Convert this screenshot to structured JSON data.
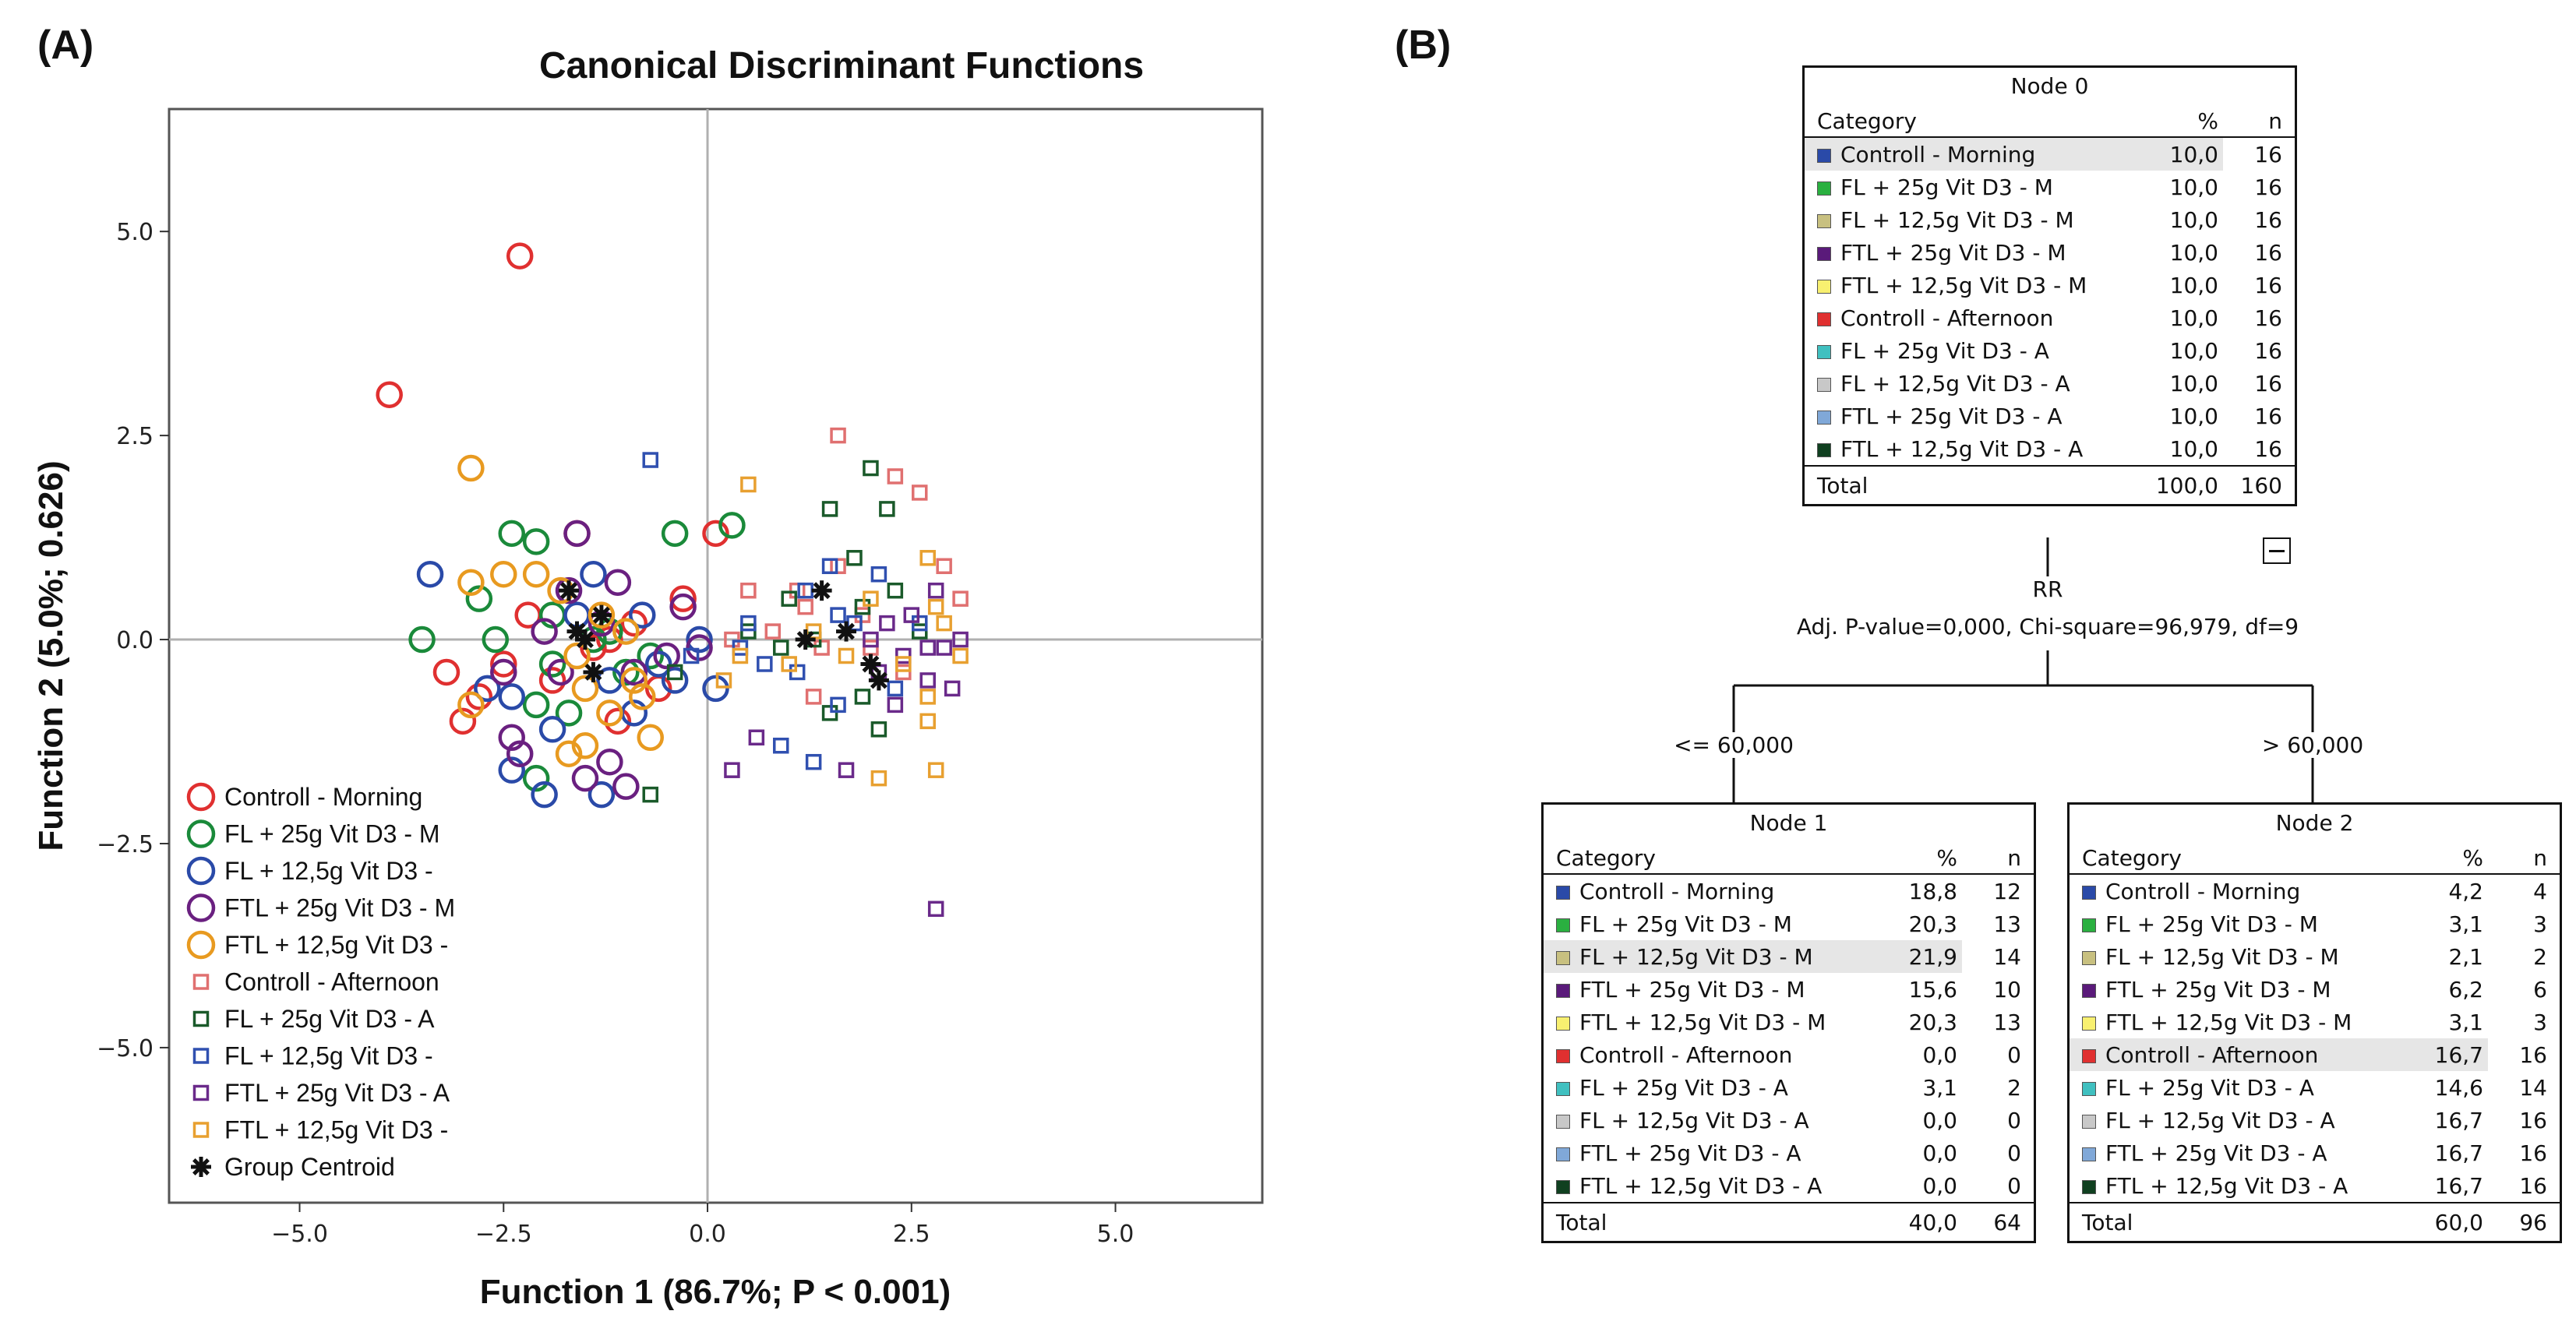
{
  "panel_a_label": "(A)",
  "panel_b_label": "(B)",
  "chart_data": {
    "type": "scatter",
    "title": "Canonical Discriminant Functions",
    "xlabel": "Function 1 (86.7%; P < 0.001)",
    "ylabel": "Function 2 (5.0%; 0.626)",
    "xlim": [
      -6.6,
      6.8
    ],
    "ylim": [
      -6.9,
      6.5
    ],
    "xticks": [
      -5,
      -2.5,
      0,
      2.5,
      5
    ],
    "xtick_labels": [
      "-5.0",
      "-2.5",
      "0.0",
      "2.5",
      "5.0"
    ],
    "yticks": [
      -5,
      -2.5,
      0,
      2.5,
      5
    ],
    "ytick_labels": [
      "-5.0",
      "-2.5",
      "0.0",
      "2.5",
      "5.0"
    ],
    "reference_lines": {
      "x": 0,
      "y": 0
    },
    "legend_position": "bottom-left",
    "series": [
      {
        "name": "Controll - Morning",
        "marker": "circle",
        "color": "#e03030",
        "points": [
          [
            -2.3,
            4.7
          ],
          [
            -3.9,
            3.0
          ],
          [
            -3.2,
            -0.4
          ],
          [
            -3.0,
            -1.0
          ],
          [
            -2.2,
            0.3
          ],
          [
            -1.6,
            1.3
          ],
          [
            -1.2,
            0.0
          ],
          [
            -0.3,
            0.5
          ],
          [
            0.1,
            1.3
          ],
          [
            -2.8,
            -0.7
          ],
          [
            -1.9,
            -0.5
          ],
          [
            -1.4,
            -0.1
          ],
          [
            -2.5,
            -0.3
          ],
          [
            -0.9,
            0.2
          ],
          [
            -1.1,
            -1.0
          ],
          [
            -0.6,
            -0.6
          ]
        ]
      },
      {
        "name": "FL + 25g Vit D3 - M",
        "marker": "circle",
        "color": "#1a8a3a",
        "points": [
          [
            -2.4,
            1.3
          ],
          [
            -2.1,
            1.2
          ],
          [
            -0.4,
            1.3
          ],
          [
            0.3,
            1.4
          ],
          [
            -2.8,
            0.5
          ],
          [
            -1.9,
            0.3
          ],
          [
            -1.4,
            0.0
          ],
          [
            -3.5,
            0.0
          ],
          [
            -2.1,
            -0.8
          ],
          [
            -1.7,
            -0.9
          ],
          [
            -2.1,
            -1.7
          ],
          [
            -1.0,
            -0.4
          ],
          [
            -1.9,
            -0.3
          ],
          [
            -0.7,
            -0.2
          ],
          [
            -2.6,
            0.0
          ],
          [
            -1.2,
            0.1
          ]
        ]
      },
      {
        "name": "FL + 12,5g Vit D3 -",
        "marker": "circle",
        "color": "#2a4aa8",
        "points": [
          [
            -3.4,
            0.8
          ],
          [
            -2.4,
            -0.7
          ],
          [
            -2.0,
            -1.9
          ],
          [
            -1.3,
            -1.9
          ],
          [
            -0.8,
            0.3
          ],
          [
            -0.4,
            -0.5
          ],
          [
            -1.9,
            -1.1
          ],
          [
            -1.2,
            -0.5
          ],
          [
            -2.4,
            -1.6
          ],
          [
            -0.9,
            -0.9
          ],
          [
            -1.6,
            0.3
          ],
          [
            -0.1,
            0.0
          ],
          [
            -2.7,
            -0.6
          ],
          [
            -1.4,
            0.8
          ],
          [
            -0.6,
            -0.3
          ],
          [
            0.1,
            -0.6
          ]
        ]
      },
      {
        "name": "FTL + 25g Vit D3 - M",
        "marker": "circle",
        "color": "#6a2080",
        "points": [
          [
            -1.6,
            1.3
          ],
          [
            -1.5,
            -1.7
          ],
          [
            -1.2,
            -1.5
          ],
          [
            -2.4,
            -1.2
          ],
          [
            -2.5,
            -0.4
          ],
          [
            -1.1,
            0.7
          ],
          [
            -2.0,
            0.1
          ],
          [
            -0.9,
            -0.4
          ],
          [
            -0.3,
            0.4
          ],
          [
            -1.8,
            -0.4
          ],
          [
            -2.3,
            -1.4
          ],
          [
            -1.0,
            -1.8
          ],
          [
            -0.5,
            -0.2
          ],
          [
            -1.7,
            0.6
          ],
          [
            -1.3,
            0.2
          ],
          [
            -0.1,
            -0.1
          ]
        ]
      },
      {
        "name": "FTL + 12,5g Vit D3 -",
        "marker": "circle",
        "color": "#e89a20",
        "points": [
          [
            -2.9,
            2.1
          ],
          [
            -2.5,
            0.8
          ],
          [
            -2.1,
            0.8
          ],
          [
            -1.8,
            0.6
          ],
          [
            -1.5,
            -0.6
          ],
          [
            -1.2,
            -0.9
          ],
          [
            -0.7,
            -1.2
          ],
          [
            -1.7,
            -1.4
          ],
          [
            -2.9,
            0.7
          ],
          [
            -1.3,
            0.3
          ],
          [
            -0.9,
            -0.5
          ],
          [
            -1.5,
            -1.3
          ],
          [
            -0.8,
            -0.7
          ],
          [
            -2.9,
            -0.8
          ],
          [
            -1.6,
            -0.2
          ],
          [
            -1.0,
            0.1
          ]
        ]
      },
      {
        "name": "Controll - Afternoon",
        "marker": "square",
        "color": "#e07070",
        "points": [
          [
            1.6,
            2.5
          ],
          [
            2.3,
            2.0
          ],
          [
            2.6,
            1.8
          ],
          [
            1.2,
            0.4
          ],
          [
            0.5,
            0.6
          ],
          [
            1.6,
            0.9
          ],
          [
            1.9,
            0.3
          ],
          [
            2.9,
            0.9
          ],
          [
            1.4,
            -0.1
          ],
          [
            2.4,
            -0.4
          ],
          [
            3.1,
            0.5
          ],
          [
            0.8,
            0.1
          ],
          [
            1.3,
            -0.7
          ],
          [
            0.3,
            0.0
          ],
          [
            2.0,
            -0.1
          ],
          [
            1.1,
            0.6
          ]
        ]
      },
      {
        "name": "FL + 25g Vit D3 - A",
        "marker": "square",
        "color": "#1a5a2a",
        "points": [
          [
            2.0,
            2.1
          ],
          [
            1.8,
            1.0
          ],
          [
            1.9,
            0.4
          ],
          [
            1.3,
            0.0
          ],
          [
            0.9,
            -0.1
          ],
          [
            2.2,
            1.6
          ],
          [
            2.1,
            -1.1
          ],
          [
            1.5,
            -0.9
          ],
          [
            -0.4,
            -0.4
          ],
          [
            0.5,
            0.1
          ],
          [
            1.9,
            -0.7
          ],
          [
            2.6,
            0.1
          ],
          [
            -0.7,
            -1.9
          ],
          [
            1.0,
            0.5
          ],
          [
            2.3,
            0.6
          ],
          [
            1.5,
            1.6
          ]
        ]
      },
      {
        "name": "FL + 12,5g Vit D3 -",
        "marker": "square",
        "color": "#3050b0",
        "points": [
          [
            -0.7,
            2.2
          ],
          [
            0.5,
            0.2
          ],
          [
            1.5,
            0.9
          ],
          [
            0.9,
            -1.3
          ],
          [
            2.1,
            0.8
          ],
          [
            1.3,
            -1.5
          ],
          [
            1.6,
            -0.8
          ],
          [
            1.6,
            0.3
          ],
          [
            2.3,
            -0.6
          ],
          [
            0.7,
            -0.3
          ],
          [
            1.1,
            -0.4
          ],
          [
            1.8,
            0.2
          ],
          [
            -0.2,
            -0.2
          ],
          [
            1.2,
            0.6
          ],
          [
            0.4,
            -0.1
          ],
          [
            2.6,
            0.2
          ]
        ]
      },
      {
        "name": "FTL + 25g Vit D3 - A",
        "marker": "square",
        "color": "#6a2a8a",
        "points": [
          [
            2.8,
            -3.3
          ],
          [
            0.3,
            -1.6
          ],
          [
            0.6,
            -1.2
          ],
          [
            2.1,
            -0.4
          ],
          [
            2.7,
            -0.5
          ],
          [
            3.0,
            -0.6
          ],
          [
            2.4,
            -0.2
          ],
          [
            3.1,
            0.0
          ],
          [
            2.5,
            0.3
          ],
          [
            2.2,
            0.2
          ],
          [
            2.8,
            0.6
          ],
          [
            1.7,
            -1.6
          ],
          [
            2.9,
            -0.1
          ],
          [
            2.0,
            0.0
          ],
          [
            2.3,
            -0.8
          ],
          [
            2.7,
            -0.1
          ]
        ]
      },
      {
        "name": "FTL + 12,5g Vit D3 -",
        "marker": "square",
        "color": "#e8a030",
        "points": [
          [
            0.5,
            1.9
          ],
          [
            1.7,
            -0.2
          ],
          [
            2.7,
            1.0
          ],
          [
            2.7,
            -1.0
          ],
          [
            2.8,
            -1.6
          ],
          [
            2.7,
            -0.7
          ],
          [
            2.9,
            0.2
          ],
          [
            2.1,
            -1.7
          ],
          [
            1.0,
            -0.3
          ],
          [
            0.2,
            -0.5
          ],
          [
            2.0,
            0.5
          ],
          [
            3.1,
            -0.2
          ],
          [
            2.4,
            -0.3
          ],
          [
            0.4,
            -0.2
          ],
          [
            2.8,
            0.4
          ],
          [
            1.3,
            0.1
          ]
        ]
      }
    ],
    "centroids": {
      "name": "Group Centroid",
      "marker": "asterisk",
      "color": "#111111",
      "points": [
        [
          -1.7,
          0.6
        ],
        [
          -1.6,
          0.1
        ],
        [
          -1.4,
          -0.4
        ],
        [
          -1.3,
          0.3
        ],
        [
          -1.5,
          0.0
        ],
        [
          1.2,
          0.0
        ],
        [
          1.4,
          0.6
        ],
        [
          1.7,
          0.1
        ],
        [
          2.0,
          -0.3
        ],
        [
          2.1,
          -0.5
        ]
      ]
    }
  },
  "tree": {
    "headers": {
      "category": "Category",
      "percent": "%",
      "n": "n",
      "total": "Total"
    },
    "root": {
      "title": "Node 0",
      "rows": [
        {
          "label": "Controll - Morning",
          "color": "#2a4aa8",
          "pct": "10,0",
          "n": "16",
          "hl": true
        },
        {
          "label": "FL + 25g Vit D3 - M",
          "color": "#2ab040",
          "pct": "10,0",
          "n": "16"
        },
        {
          "label": "FL + 12,5g Vit D3 - M",
          "color": "#c8c080",
          "pct": "10,0",
          "n": "16"
        },
        {
          "label": "FTL + 25g Vit D3 - M",
          "color": "#5a1a7a",
          "pct": "10,0",
          "n": "16"
        },
        {
          "label": "FTL + 12,5g Vit D3 - M",
          "color": "#f8f070",
          "pct": "10,0",
          "n": "16"
        },
        {
          "label": "Controll - Afternoon",
          "color": "#e03030",
          "pct": "10,0",
          "n": "16"
        },
        {
          "label": "FL + 25g Vit D3 - A",
          "color": "#40c0c0",
          "pct": "10,0",
          "n": "16"
        },
        {
          "label": "FL + 12,5g Vit D3 - A",
          "color": "#c8c8c8",
          "pct": "10,0",
          "n": "16"
        },
        {
          "label": "FTL + 25g Vit D3 - A",
          "color": "#80a8d8",
          "pct": "10,0",
          "n": "16"
        },
        {
          "label": "FTL + 12,5g Vit D3 - A",
          "color": "#104020",
          "pct": "10,0",
          "n": "16"
        }
      ],
      "total_pct": "100,0",
      "total_n": "160"
    },
    "split_variable": "RR",
    "split_stats": "Adj. P-value=0,000, Chi-square=96,979, df=9",
    "left_branch_label": "<= 60,000",
    "right_branch_label": "> 60,000",
    "left": {
      "title": "Node 1",
      "rows": [
        {
          "label": "Controll - Morning",
          "color": "#2a4aa8",
          "pct": "18,8",
          "n": "12"
        },
        {
          "label": "FL + 25g Vit D3 - M",
          "color": "#2ab040",
          "pct": "20,3",
          "n": "13"
        },
        {
          "label": "FL + 12,5g Vit D3 - M",
          "color": "#c8c080",
          "pct": "21,9",
          "n": "14",
          "hl": true
        },
        {
          "label": "FTL + 25g Vit D3 - M",
          "color": "#5a1a7a",
          "pct": "15,6",
          "n": "10"
        },
        {
          "label": "FTL + 12,5g Vit D3 - M",
          "color": "#f8f070",
          "pct": "20,3",
          "n": "13"
        },
        {
          "label": "Controll - Afternoon",
          "color": "#e03030",
          "pct": "0,0",
          "n": "0"
        },
        {
          "label": "FL + 25g Vit D3 - A",
          "color": "#40c0c0",
          "pct": "3,1",
          "n": "2"
        },
        {
          "label": "FL + 12,5g Vit D3 - A",
          "color": "#c8c8c8",
          "pct": "0,0",
          "n": "0"
        },
        {
          "label": "FTL + 25g Vit D3 - A",
          "color": "#80a8d8",
          "pct": "0,0",
          "n": "0"
        },
        {
          "label": "FTL + 12,5g Vit D3 - A",
          "color": "#104020",
          "pct": "0,0",
          "n": "0"
        }
      ],
      "total_pct": "40,0",
      "total_n": "64"
    },
    "right": {
      "title": "Node 2",
      "rows": [
        {
          "label": "Controll - Morning",
          "color": "#2a4aa8",
          "pct": "4,2",
          "n": "4"
        },
        {
          "label": "FL + 25g Vit D3 - M",
          "color": "#2ab040",
          "pct": "3,1",
          "n": "3"
        },
        {
          "label": "FL + 12,5g Vit D3 - M",
          "color": "#c8c080",
          "pct": "2,1",
          "n": "2"
        },
        {
          "label": "FTL + 25g Vit D3 - M",
          "color": "#5a1a7a",
          "pct": "6,2",
          "n": "6"
        },
        {
          "label": "FTL + 12,5g Vit D3 - M",
          "color": "#f8f070",
          "pct": "3,1",
          "n": "3"
        },
        {
          "label": "Controll - Afternoon",
          "color": "#e03030",
          "pct": "16,7",
          "n": "16",
          "hl": true
        },
        {
          "label": "FL + 25g Vit D3 - A",
          "color": "#40c0c0",
          "pct": "14,6",
          "n": "14"
        },
        {
          "label": "FL + 12,5g Vit D3 - A",
          "color": "#c8c8c8",
          "pct": "16,7",
          "n": "16"
        },
        {
          "label": "FTL + 25g Vit D3 - A",
          "color": "#80a8d8",
          "pct": "16,7",
          "n": "16"
        },
        {
          "label": "FTL + 12,5g Vit D3 - A",
          "color": "#104020",
          "pct": "16,7",
          "n": "16"
        }
      ],
      "total_pct": "60,0",
      "total_n": "96"
    }
  }
}
